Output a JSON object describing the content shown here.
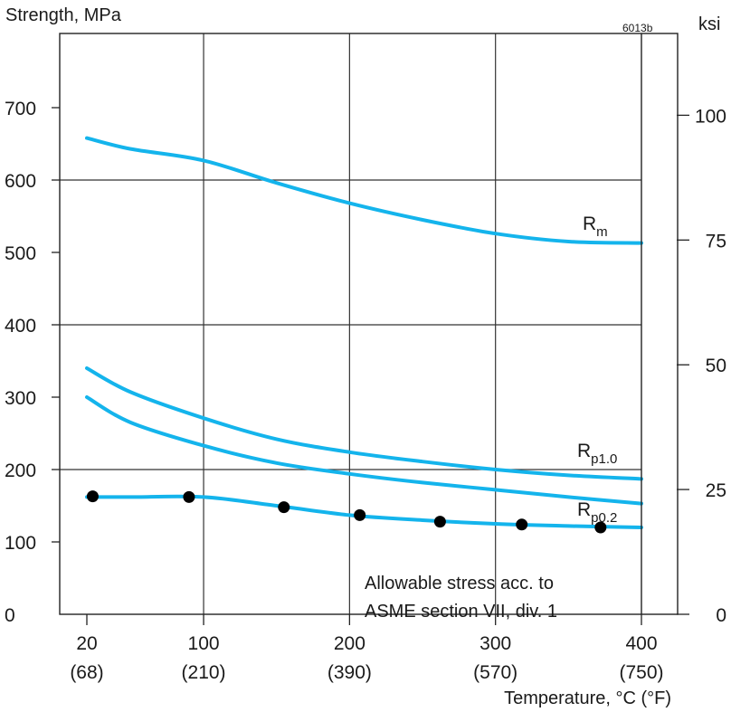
{
  "chart_data": {
    "type": "line",
    "title": "Strength, MPa",
    "figure_code": "6013b",
    "xlabel": "Temperature, °C (°F)",
    "ylabel_left": "Strength, MPa",
    "ylabel_right": "ksi",
    "xlim": [
      0,
      400
    ],
    "ylim": [
      0,
      770
    ],
    "x_ticks": [
      {
        "value": 20,
        "label": "20",
        "sub": "(68)"
      },
      {
        "value": 100,
        "label": "100",
        "sub": "(210)"
      },
      {
        "value": 200,
        "label": "200",
        "sub": "(390)"
      },
      {
        "value": 300,
        "label": "300",
        "sub": "(570)"
      },
      {
        "value": 400,
        "label": "400",
        "sub": "(750)"
      }
    ],
    "y_ticks": [
      0,
      100,
      200,
      300,
      400,
      500,
      600,
      700
    ],
    "y_ticks_right": [
      {
        "value": 0,
        "label": "0"
      },
      {
        "value": 172.4,
        "label": "25"
      },
      {
        "value": 344.7,
        "label": "50"
      },
      {
        "value": 517.1,
        "label": "75"
      },
      {
        "value": 689.5,
        "label": "100"
      }
    ],
    "grid": "major",
    "line_color": "#14b4ec",
    "series": [
      {
        "name": "Rm",
        "label_main": "R",
        "label_sub": "m",
        "x": [
          20,
          50,
          100,
          150,
          200,
          250,
          300,
          350,
          400
        ],
        "y": [
          658,
          643,
          627,
          596,
          568,
          545,
          526,
          515,
          513
        ]
      },
      {
        "name": "Rp1.0",
        "label_main": "R",
        "label_sub": "p1.0",
        "x": [
          20,
          50,
          100,
          150,
          200,
          250,
          300,
          350,
          400
        ],
        "y": [
          340,
          307,
          271,
          242,
          224,
          211,
          200,
          192,
          187
        ]
      },
      {
        "name": "Rp0.2",
        "label_main": "R",
        "label_sub": "p0.2",
        "x": [
          20,
          50,
          100,
          150,
          200,
          250,
          300,
          350,
          400
        ],
        "y": [
          300,
          265,
          233,
          209,
          194,
          182,
          172,
          162,
          153
        ]
      },
      {
        "name": "Allowable stress",
        "x": [
          20,
          50,
          100,
          150,
          200,
          250,
          300,
          350,
          400
        ],
        "y": [
          162,
          162,
          162,
          150,
          137,
          130,
          125,
          122,
          120
        ]
      }
    ],
    "points": {
      "name": "Allowable stress",
      "x": [
        24,
        90,
        155,
        207,
        262,
        318,
        372
      ],
      "y": [
        163,
        162,
        148,
        137,
        128,
        124,
        120
      ]
    },
    "annotation": {
      "line1": "Allowable stress acc. to",
      "line2": "ASME section VII, div. 1"
    }
  }
}
